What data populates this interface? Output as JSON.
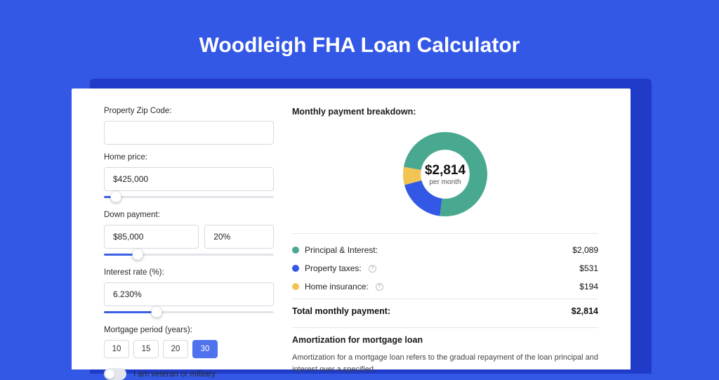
{
  "page": {
    "title": "Woodleigh FHA Loan Calculator",
    "bg_color": "#3358e6",
    "shadow_color": "#1f3bc7",
    "card_bg": "#ffffff"
  },
  "form": {
    "zip": {
      "label": "Property Zip Code:",
      "value": ""
    },
    "home_price": {
      "label": "Home price:",
      "value": "$425,000",
      "slider_pct": 7
    },
    "down_payment": {
      "label": "Down payment:",
      "value": "$85,000",
      "pct_value": "20%",
      "slider_pct": 20
    },
    "interest": {
      "label": "Interest rate (%):",
      "value": "6.230%",
      "slider_pct": 31
    },
    "period": {
      "label": "Mortgage period (years):",
      "options": [
        "10",
        "15",
        "20",
        "30"
      ],
      "selected": "30",
      "btn_bg_active": "#4f73ee"
    },
    "veteran": {
      "label": "I am veteran or military",
      "on": false
    }
  },
  "breakdown": {
    "title": "Monthly payment breakdown:",
    "donut": {
      "type": "pie",
      "amount": "$2,814",
      "sub": "per month",
      "size": 120,
      "inner_ratio": 0.58,
      "slices": [
        {
          "name": "principal_interest",
          "value": 2089,
          "color": "#49a990"
        },
        {
          "name": "property_taxes",
          "value": 531,
          "color": "#3358e6"
        },
        {
          "name": "home_insurance",
          "value": 194,
          "color": "#f1c453"
        }
      ],
      "start_angle_deg": -170
    },
    "rows": [
      {
        "label": "Principal & Interest:",
        "value": "$2,089",
        "color": "#49a990",
        "info": false
      },
      {
        "label": "Property taxes:",
        "value": "$531",
        "color": "#3358e6",
        "info": true
      },
      {
        "label": "Home insurance:",
        "value": "$194",
        "color": "#f1c453",
        "info": true
      }
    ],
    "total": {
      "label": "Total monthly payment:",
      "value": "$2,814"
    }
  },
  "amortization": {
    "title": "Amortization for mortgage loan",
    "body": "Amortization for a mortgage loan refers to the gradual repayment of the loan principal and interest over a specified"
  }
}
